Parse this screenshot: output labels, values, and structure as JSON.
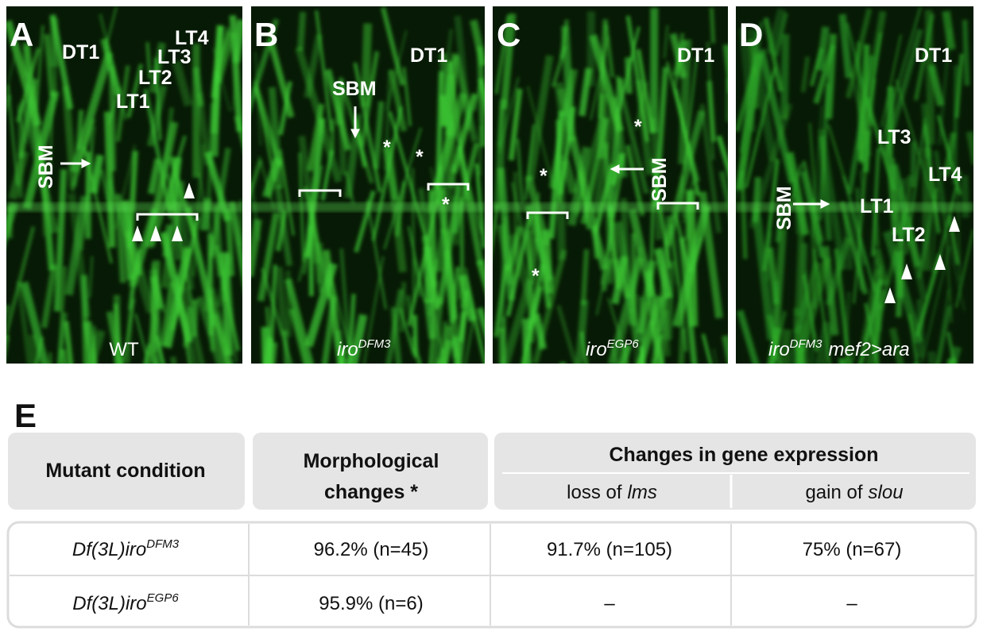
{
  "panels": [
    {
      "letter": "A",
      "annotations": [
        "DT1",
        "LT4",
        "LT3",
        "LT2",
        "LT1",
        "SBM"
      ],
      "genotype": "WT"
    },
    {
      "letter": "B",
      "annotations": [
        "DT1",
        "SBM",
        "*",
        "*",
        "*"
      ],
      "genotype": {
        "italic": "iro",
        "sup": "DFM3"
      }
    },
    {
      "letter": "C",
      "annotations": [
        "DT1",
        "SBM",
        "*",
        "*",
        "*"
      ],
      "genotype": {
        "italic": "iro",
        "sup": "EGP6"
      }
    },
    {
      "letter": "D",
      "annotations": [
        "DT1",
        "LT3",
        "LT4",
        "SBM",
        "LT1",
        "LT2"
      ],
      "genotype": {
        "italic": "iro",
        "sup": "DFM3",
        "rest": "mef2>ara"
      }
    }
  ],
  "table": {
    "label": "E",
    "header": {
      "condition": "Mutant condition",
      "morphology": [
        "Morphological",
        "changes *"
      ],
      "expression": {
        "title": "Changes in gene expression",
        "columns": [
          {
            "text": "loss of",
            "italic": "lms"
          },
          {
            "text": "gain of",
            "italic": "slou"
          }
        ]
      }
    },
    "rows": [
      {
        "condition": {
          "text": "Df(3L)iro",
          "sup": "DFM3"
        },
        "cells": [
          "96.2% (n=45)",
          "91.7% (n=105)",
          "75% (n=67)"
        ]
      },
      {
        "condition": {
          "text": "Df(3L)iro",
          "sup": "EGP6"
        },
        "cells": [
          "95.9% (n=6)",
          "–",
          "–"
        ]
      }
    ]
  }
}
